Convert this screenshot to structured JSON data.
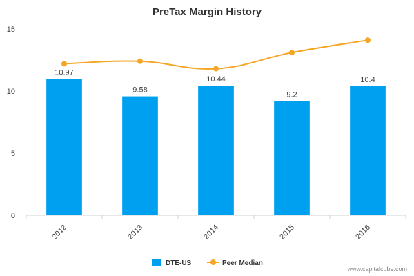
{
  "chart_data": {
    "type": "bar",
    "title": "PreTax Margin History",
    "xlabel": "",
    "ylabel": "",
    "categories": [
      "2012",
      "2013",
      "2014",
      "2015",
      "2016"
    ],
    "ylim": [
      0,
      15
    ],
    "yticks": [
      "0",
      "5",
      "10",
      "15"
    ],
    "grid": false,
    "legend_position": "bottom-center",
    "series": [
      {
        "name": "DTE-US",
        "type": "bar",
        "color": "#00a0f0",
        "values": [
          10.97,
          9.58,
          10.44,
          9.2,
          10.4
        ],
        "labels": [
          "10.97",
          "9.58",
          "10.44",
          "9.2",
          "10.4"
        ]
      },
      {
        "name": "Peer Median",
        "type": "line",
        "color": "#f5a623",
        "values": [
          12.2,
          12.4,
          11.8,
          13.1,
          14.1
        ]
      }
    ]
  },
  "credit": "www.capitalcube.com"
}
